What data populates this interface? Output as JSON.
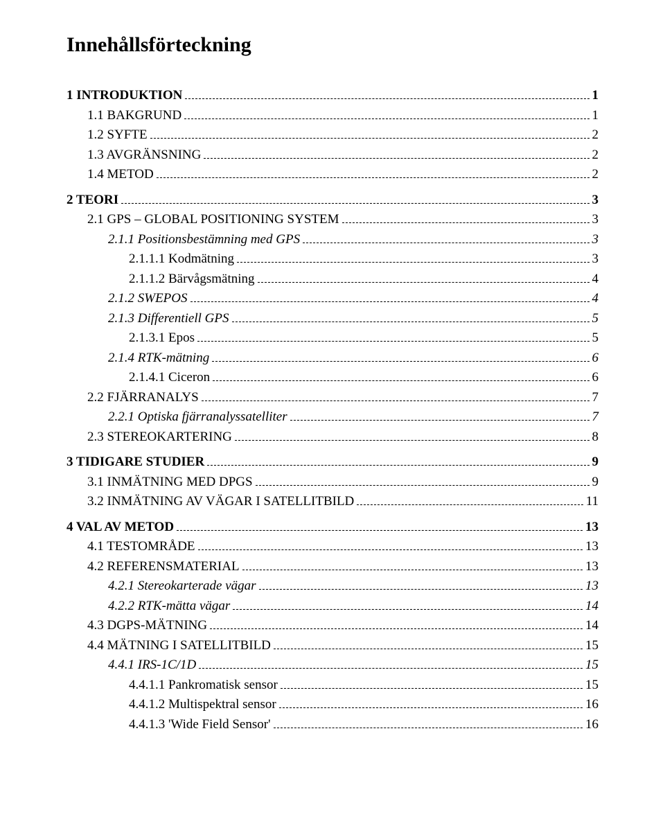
{
  "title": "Innehållsförteckning",
  "font_family": "Times New Roman",
  "colors": {
    "text": "#000000",
    "background": "#ffffff",
    "leader": "#000000"
  },
  "entries": [
    {
      "level": 0,
      "num": "1",
      "text": "INTRODUKTION",
      "page": "1",
      "smallcaps": true
    },
    {
      "level": 1,
      "num": "1.1",
      "text": "BAKGRUND",
      "page": "1",
      "smallcaps": true
    },
    {
      "level": 1,
      "num": "1.2",
      "text": "SYFTE",
      "page": "2",
      "smallcaps": true
    },
    {
      "level": 1,
      "num": "1.3",
      "text": "AVGRÄNSNING",
      "page": "2",
      "smallcaps": true
    },
    {
      "level": 1,
      "num": "1.4",
      "text": "METOD",
      "page": "2",
      "smallcaps": true
    },
    {
      "level": 0,
      "num": "2",
      "text": "TEORI",
      "page": "3",
      "smallcaps": true
    },
    {
      "level": 1,
      "num": "2.1",
      "text": "GPS – GLOBAL POSITIONING SYSTEM",
      "page": "3",
      "smallcaps": true
    },
    {
      "level": 2,
      "num": "2.1.1",
      "text": "Positionsbestämning med GPS",
      "page": "3",
      "italic": true
    },
    {
      "level": 3,
      "num": "2.1.1.1",
      "text": "Kodmätning",
      "page": "3"
    },
    {
      "level": 3,
      "num": "2.1.1.2",
      "text": "Bärvågsmätning",
      "page": "4"
    },
    {
      "level": 2,
      "num": "2.1.2",
      "text": "SWEPOS",
      "page": "4",
      "italic": true
    },
    {
      "level": 2,
      "num": "2.1.3",
      "text": "Differentiell GPS",
      "page": "5",
      "italic": true
    },
    {
      "level": 3,
      "num": "2.1.3.1",
      "text": "Epos",
      "page": "5"
    },
    {
      "level": 2,
      "num": "2.1.4",
      "text": "RTK-mätning",
      "page": "6",
      "italic": true
    },
    {
      "level": 3,
      "num": "2.1.4.1",
      "text": "Ciceron",
      "page": "6"
    },
    {
      "level": 1,
      "num": "2.2",
      "text": "FJÄRRANALYS",
      "page": "7",
      "smallcaps": true
    },
    {
      "level": 2,
      "num": "2.2.1",
      "text": "Optiska fjärranalyssatelliter",
      "page": "7",
      "italic": true
    },
    {
      "level": 1,
      "num": "2.3",
      "text": "STEREOKARTERING",
      "page": "8",
      "smallcaps": true
    },
    {
      "level": 0,
      "num": "3",
      "text": "TIDIGARE STUDIER",
      "page": "9",
      "smallcaps": true
    },
    {
      "level": 1,
      "num": "3.1",
      "text": "INMÄTNING MED DPGS",
      "page": "9",
      "smallcaps": true
    },
    {
      "level": 1,
      "num": "3.2",
      "text": "INMÄTNING AV VÄGAR I SATELLITBILD",
      "page": "11",
      "smallcaps": true
    },
    {
      "level": 0,
      "num": "4",
      "text": "VAL AV METOD",
      "page": "13",
      "smallcaps": true
    },
    {
      "level": 1,
      "num": "4.1",
      "text": "TESTOMRÅDE",
      "page": "13",
      "smallcaps": true
    },
    {
      "level": 1,
      "num": "4.2",
      "text": "REFERENSMATERIAL",
      "page": "13",
      "smallcaps": true
    },
    {
      "level": 2,
      "num": "4.2.1",
      "text": "Stereokarterade vägar",
      "page": "13",
      "italic": true
    },
    {
      "level": 2,
      "num": "4.2.2",
      "text": "RTK-mätta vägar",
      "page": "14",
      "italic": true
    },
    {
      "level": 1,
      "num": "4.3",
      "text": "DGPS-MÄTNING",
      "page": "14",
      "smallcaps": true
    },
    {
      "level": 1,
      "num": "4.4",
      "text": "MÄTNING I SATELLITBILD",
      "page": "15",
      "smallcaps": true
    },
    {
      "level": 2,
      "num": "4.4.1",
      "text": "IRS-1C/1D",
      "page": "15",
      "italic": true
    },
    {
      "level": 3,
      "num": "4.4.1.1",
      "text": "Pankromatisk sensor",
      "page": "15"
    },
    {
      "level": 3,
      "num": "4.4.1.2",
      "text": "Multispektral sensor",
      "page": "16"
    },
    {
      "level": 3,
      "num": "4.4.1.3",
      "text": "'Wide Field Sensor'",
      "page": "16"
    }
  ]
}
